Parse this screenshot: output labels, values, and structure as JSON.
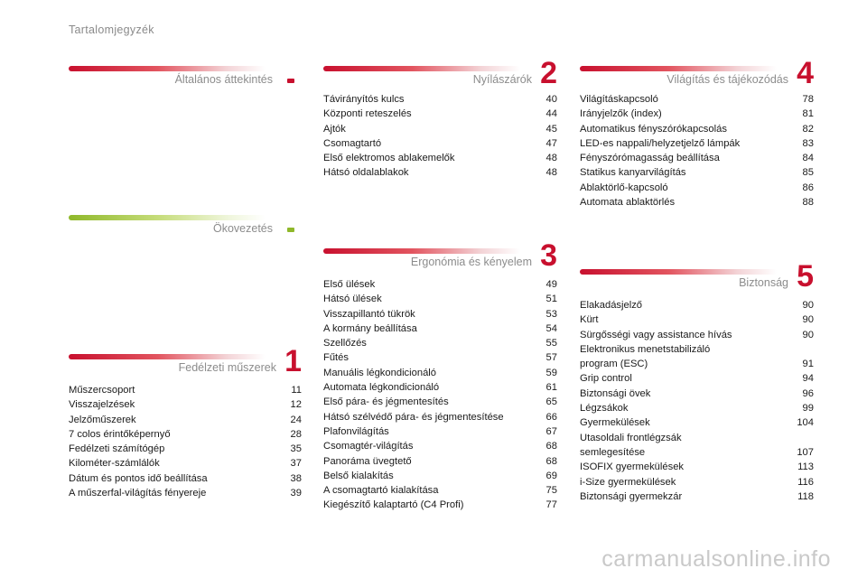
{
  "page_title": "Tartalomjegyzék",
  "colors": {
    "red": "#c8102e",
    "green": "#8fb82a"
  },
  "sections": [
    {
      "title": "Általános áttekintés",
      "number": "."
    },
    {
      "title": "Ökovezetés",
      "number": "."
    },
    {
      "title": "Fedélzeti műszerek",
      "number": "1",
      "entries": [
        {
          "label": "Műszercsoport",
          "page": "11"
        },
        {
          "label": "Visszajelzések",
          "page": "12"
        },
        {
          "label": "Jelzőműszerek",
          "page": "24"
        },
        {
          "label": "7 colos érintőképernyő",
          "page": "28"
        },
        {
          "label": "Fedélzeti számítógép",
          "page": "35"
        },
        {
          "label": "Kilométer-számlálók",
          "page": "37"
        },
        {
          "label": "Dátum és pontos idő beállítása",
          "page": "38"
        },
        {
          "label": "A műszerfal-világítás fényereje",
          "page": "39"
        }
      ]
    },
    {
      "title": "Nyílászárók",
      "number": "2",
      "entries": [
        {
          "label": "Távirányítós kulcs",
          "page": "40"
        },
        {
          "label": "Központi reteszelés",
          "page": "44"
        },
        {
          "label": "Ajtók",
          "page": "45"
        },
        {
          "label": "Csomagtartó",
          "page": "47"
        },
        {
          "label": "Első elektromos ablakemelők",
          "page": "48"
        },
        {
          "label": "Hátsó oldalablakok",
          "page": "48"
        }
      ]
    },
    {
      "title": "Ergonómia és kényelem",
      "number": "3",
      "entries": [
        {
          "label": "Első ülések",
          "page": "49"
        },
        {
          "label": "Hátsó ülések",
          "page": "51"
        },
        {
          "label": "Visszapillantó tükrök",
          "page": "53"
        },
        {
          "label": "A kormány beállítása",
          "page": "54"
        },
        {
          "label": "Szellőzés",
          "page": "55"
        },
        {
          "label": "Fűtés",
          "page": "57"
        },
        {
          "label": "Manuális légkondicionáló",
          "page": "59"
        },
        {
          "label": "Automata légkondicionáló",
          "page": "61"
        },
        {
          "label": "Első pára- és jégmentesítés",
          "page": "65"
        },
        {
          "label": "Hátsó szélvédő pára- és jégmentesítése",
          "page": "66"
        },
        {
          "label": "Plafonvilágítás",
          "page": "67"
        },
        {
          "label": "Csomagtér-világítás",
          "page": "68"
        },
        {
          "label": "Panoráma üvegtető",
          "page": "68"
        },
        {
          "label": "Belső kialakítás",
          "page": "69"
        },
        {
          "label": "A csomagtartó kialakítása",
          "page": "75"
        },
        {
          "label": "Kiegészítő kalaptartó (C4 Profi)",
          "page": "77"
        }
      ]
    },
    {
      "title": "Világítás és tájékozódás",
      "number": "4",
      "entries": [
        {
          "label": "Világításkapcsoló",
          "page": "78"
        },
        {
          "label": "Irányjelzők (index)",
          "page": "81"
        },
        {
          "label": "Automatikus fényszórókapcsolás",
          "page": "82"
        },
        {
          "label": "LED-es nappali/helyzetjelző lámpák",
          "page": "83"
        },
        {
          "label": "Fényszórómagasság beállítása",
          "page": "84"
        },
        {
          "label": "Statikus kanyarvilágítás",
          "page": "85"
        },
        {
          "label": "Ablaktörlő-kapcsoló",
          "page": "86"
        },
        {
          "label": "Automata ablaktörlés",
          "page": "88"
        }
      ]
    },
    {
      "title": "Biztonság",
      "number": "5",
      "entries": [
        {
          "label": "Elakadásjelző",
          "page": "90"
        },
        {
          "label": "Kürt",
          "page": "90"
        },
        {
          "label": "Sürgősségi vagy assistance hívás",
          "page": "90"
        },
        {
          "label": "Elektronikus menetstabilizáló\n   program (ESC)",
          "page": "91"
        },
        {
          "label": "Grip control",
          "page": "94"
        },
        {
          "label": "Biztonsági övek",
          "page": "96"
        },
        {
          "label": "Légzsákok",
          "page": "99"
        },
        {
          "label": "Gyermekülések",
          "page": "104"
        },
        {
          "label": "Utasoldali frontlégzsák\n   semlegesítése",
          "page": "107"
        },
        {
          "label": "ISOFIX gyermekülések",
          "page": "113"
        },
        {
          "label": "i-Size gyermekülések",
          "page": "116"
        },
        {
          "label": "Biztonsági gyermekzár",
          "page": "118"
        }
      ]
    }
  ],
  "watermark": "carmanualsonline.info"
}
